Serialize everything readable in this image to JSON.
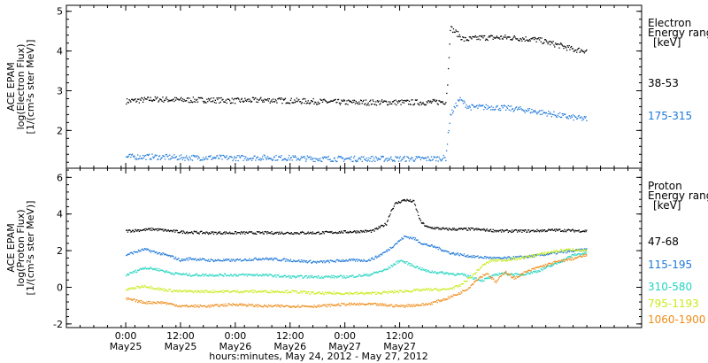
{
  "chart_data": [
    {
      "type": "scatter",
      "panel": "electron",
      "ylabel_lines": [
        "ACE EPAM",
        "log(Electron Flux)",
        "[1/(cm²s ster MeV)]"
      ],
      "ylim": [
        1.05,
        5.15
      ],
      "yticks": [
        2,
        3,
        4,
        5
      ],
      "legend_title_lines": [
        "Electron",
        "Energy range",
        "[keV]"
      ],
      "series": [
        {
          "name": "38-53",
          "color": "#000000",
          "points": [
            [
              0,
              2.75
            ],
            [
              6,
              2.8
            ],
            [
              12,
              2.78
            ],
            [
              18,
              2.78
            ],
            [
              24,
              2.76
            ],
            [
              30,
              2.78
            ],
            [
              36,
              2.76
            ],
            [
              42,
              2.74
            ],
            [
              48,
              2.72
            ],
            [
              54,
              2.72
            ],
            [
              60,
              2.72
            ],
            [
              66,
              2.72
            ],
            [
              70,
              2.74
            ],
            [
              70.4,
              3.2
            ],
            [
              71,
              4.6
            ],
            [
              73,
              4.4
            ],
            [
              74,
              4.3
            ],
            [
              78,
              4.35
            ],
            [
              84,
              4.35
            ],
            [
              90,
              4.3
            ],
            [
              95,
              4.15
            ],
            [
              98,
              4.05
            ],
            [
              101,
              4.02
            ]
          ]
        },
        {
          "name": "175-315",
          "color": "#1e78d8",
          "points": [
            [
              0,
              1.35
            ],
            [
              6,
              1.35
            ],
            [
              12,
              1.33
            ],
            [
              18,
              1.33
            ],
            [
              24,
              1.32
            ],
            [
              30,
              1.33
            ],
            [
              36,
              1.32
            ],
            [
              42,
              1.3
            ],
            [
              48,
              1.3
            ],
            [
              54,
              1.3
            ],
            [
              60,
              1.3
            ],
            [
              66,
              1.3
            ],
            [
              70,
              1.32
            ],
            [
              70.5,
              1.9
            ],
            [
              71,
              2.4
            ],
            [
              73,
              2.8
            ],
            [
              75,
              2.6
            ],
            [
              80,
              2.6
            ],
            [
              86,
              2.55
            ],
            [
              92,
              2.45
            ],
            [
              97,
              2.35
            ],
            [
              101,
              2.3
            ]
          ]
        }
      ]
    },
    {
      "type": "scatter",
      "panel": "proton",
      "ylabel_lines": [
        "ACE EPAM",
        "log(Proton Flux)",
        "[1/(cm²s ster MeV)]"
      ],
      "ylim": [
        -2.2,
        6.5
      ],
      "yticks": [
        -2,
        0,
        2,
        4,
        6
      ],
      "legend_title_lines": [
        "Proton",
        "Energy range",
        "[keV]"
      ],
      "series": [
        {
          "name": "47-68",
          "color": "#000000",
          "points": [
            [
              0,
              3.1
            ],
            [
              6,
              3.2
            ],
            [
              12,
              3.05
            ],
            [
              18,
              3.0
            ],
            [
              24,
              3.0
            ],
            [
              30,
              3.0
            ],
            [
              36,
              3.0
            ],
            [
              42,
              3.0
            ],
            [
              48,
              3.05
            ],
            [
              54,
              3.1
            ],
            [
              57,
              3.5
            ],
            [
              58,
              4.2
            ],
            [
              59,
              4.6
            ],
            [
              61,
              4.8
            ],
            [
              63,
              4.7
            ],
            [
              64.5,
              3.6
            ],
            [
              66,
              3.3
            ],
            [
              70,
              3.2
            ],
            [
              76,
              3.2
            ],
            [
              82,
              3.1
            ],
            [
              88,
              3.1
            ],
            [
              94,
              3.15
            ],
            [
              101,
              3.1
            ]
          ]
        },
        {
          "name": "115-195",
          "color": "#1e78d8",
          "points": [
            [
              0,
              1.8
            ],
            [
              4,
              2.1
            ],
            [
              7,
              1.9
            ],
            [
              10,
              1.7
            ],
            [
              12,
              1.5
            ],
            [
              14,
              1.6
            ],
            [
              18,
              1.5
            ],
            [
              24,
              1.5
            ],
            [
              30,
              1.6
            ],
            [
              36,
              1.5
            ],
            [
              42,
              1.4
            ],
            [
              48,
              1.5
            ],
            [
              53,
              1.5
            ],
            [
              55,
              1.7
            ],
            [
              57,
              2.0
            ],
            [
              59,
              2.4
            ],
            [
              61,
              2.8
            ],
            [
              63,
              2.7
            ],
            [
              65,
              2.4
            ],
            [
              68,
              2.2
            ],
            [
              71,
              1.9
            ],
            [
              76,
              1.7
            ],
            [
              82,
              1.6
            ],
            [
              88,
              1.7
            ],
            [
              94,
              1.9
            ],
            [
              101,
              2.1
            ]
          ]
        },
        {
          "name": "310-580",
          "color": "#22d4c0",
          "points": [
            [
              0,
              0.7
            ],
            [
              4,
              1.1
            ],
            [
              7,
              1.0
            ],
            [
              10,
              0.8
            ],
            [
              14,
              0.7
            ],
            [
              18,
              0.7
            ],
            [
              24,
              0.7
            ],
            [
              30,
              0.7
            ],
            [
              36,
              0.6
            ],
            [
              42,
              0.6
            ],
            [
              48,
              0.6
            ],
            [
              53,
              0.7
            ],
            [
              57,
              1.0
            ],
            [
              60,
              1.5
            ],
            [
              63,
              1.2
            ],
            [
              66,
              0.9
            ],
            [
              70,
              0.8
            ],
            [
              74,
              0.7
            ],
            [
              78,
              0.4
            ],
            [
              82,
              0.8
            ],
            [
              86,
              0.7
            ],
            [
              90,
              0.9
            ],
            [
              94,
              1.3
            ],
            [
              98,
              1.8
            ],
            [
              101,
              1.9
            ]
          ]
        },
        {
          "name": "795-1193",
          "color": "#c8ec1c",
          "points": [
            [
              0,
              -0.1
            ],
            [
              4,
              0.1
            ],
            [
              8,
              -0.1
            ],
            [
              12,
              -0.2
            ],
            [
              18,
              -0.2
            ],
            [
              24,
              -0.2
            ],
            [
              30,
              -0.2
            ],
            [
              36,
              -0.2
            ],
            [
              42,
              -0.3
            ],
            [
              48,
              -0.3
            ],
            [
              54,
              -0.3
            ],
            [
              60,
              -0.2
            ],
            [
              66,
              -0.1
            ],
            [
              70,
              -0.1
            ],
            [
              73,
              0.1
            ],
            [
              76,
              0.7
            ],
            [
              78,
              1.2
            ],
            [
              80,
              1.5
            ],
            [
              82,
              1.5
            ],
            [
              86,
              1.6
            ],
            [
              90,
              1.8
            ],
            [
              94,
              2.0
            ],
            [
              98,
              2.1
            ],
            [
              101,
              2.0
            ]
          ]
        },
        {
          "name": "1060-1900",
          "color": "#f08c18",
          "points": [
            [
              0,
              -0.6
            ],
            [
              4,
              -0.8
            ],
            [
              8,
              -0.8
            ],
            [
              12,
              -1.0
            ],
            [
              18,
              -1.0
            ],
            [
              24,
              -0.9
            ],
            [
              30,
              -1.0
            ],
            [
              36,
              -1.0
            ],
            [
              42,
              -1.0
            ],
            [
              48,
              -0.9
            ],
            [
              54,
              -0.9
            ],
            [
              60,
              -1.0
            ],
            [
              66,
              -0.9
            ],
            [
              70,
              -0.6
            ],
            [
              73,
              -0.3
            ],
            [
              75,
              0.0
            ],
            [
              77,
              0.5
            ],
            [
              79,
              0.8
            ],
            [
              81,
              0.3
            ],
            [
              83,
              0.9
            ],
            [
              85,
              0.5
            ],
            [
              87,
              0.8
            ],
            [
              90,
              1.1
            ],
            [
              94,
              1.4
            ],
            [
              98,
              1.6
            ],
            [
              101,
              1.8
            ]
          ]
        }
      ]
    }
  ],
  "x_axis": {
    "range_hours": [
      -13,
      113
    ],
    "major_ticks": [
      {
        "hour": 0,
        "time": "0:00",
        "day": "May25"
      },
      {
        "hour": 12,
        "time": "12:00",
        "day": "May25"
      },
      {
        "hour": 24,
        "time": "0:00",
        "day": "May26"
      },
      {
        "hour": 36,
        "time": "12:00",
        "day": "May26"
      },
      {
        "hour": 48,
        "time": "0:00",
        "day": "May27"
      },
      {
        "hour": 60,
        "time": "12:00",
        "day": "May27"
      }
    ],
    "xlabel": "hours:minutes, May 24, 2012 - May 27, 2012"
  }
}
